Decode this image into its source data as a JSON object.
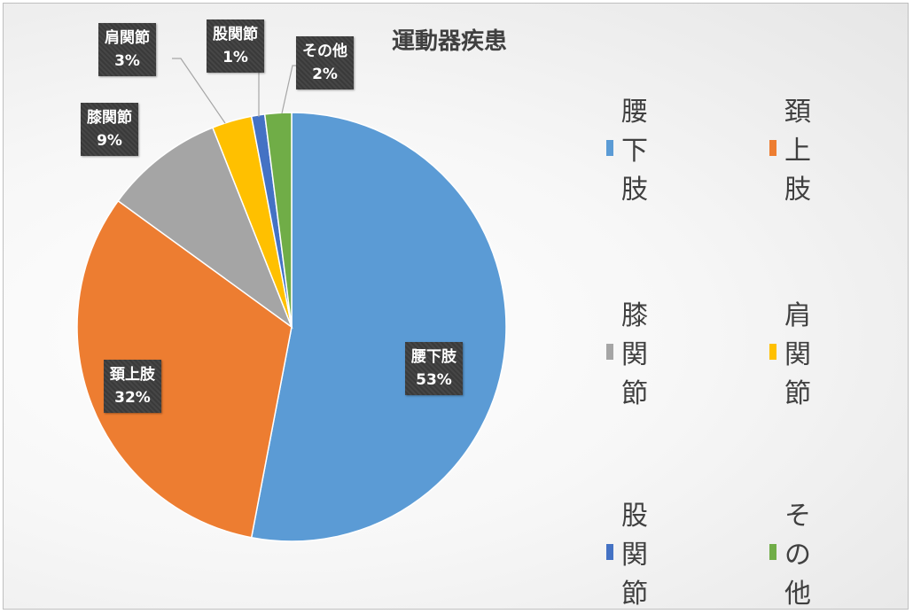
{
  "chart_data": {
    "type": "pie",
    "title": "運動器疾患",
    "categories": [
      "腰下肢",
      "頚上肢",
      "膝関節",
      "肩関節",
      "股関節",
      "その他"
    ],
    "values": [
      53,
      32,
      9,
      3,
      1,
      2
    ],
    "value_labels": [
      "53%",
      "32%",
      "9%",
      "3%",
      "1%",
      "2%"
    ],
    "colors": [
      "#5b9bd5",
      "#ed7d31",
      "#a5a5a5",
      "#ffc000",
      "#4472c4",
      "#70ad47"
    ],
    "legend_position": "right",
    "start_angle_deg": 0,
    "direction": "clockwise"
  }
}
